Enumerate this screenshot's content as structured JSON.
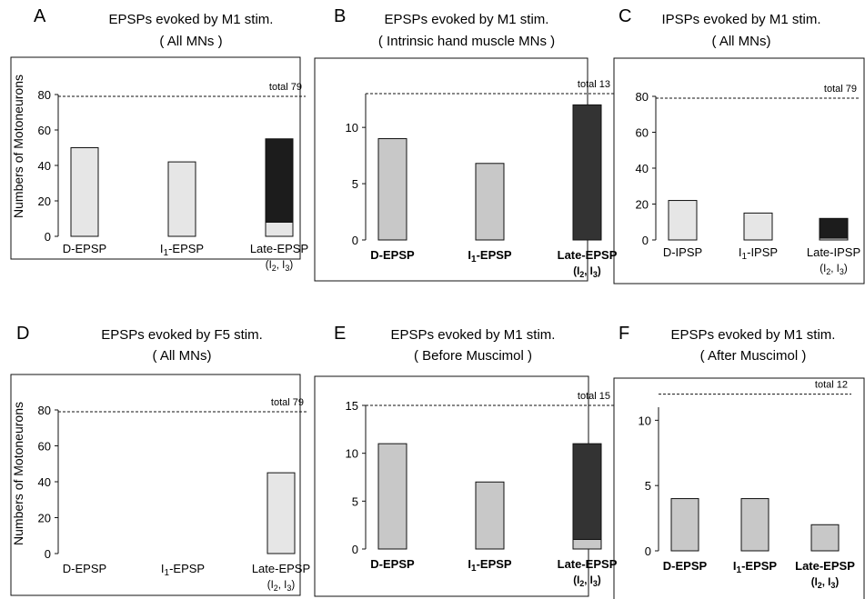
{
  "figure": {
    "ylabel": "Numbers of Motoneurons"
  },
  "chart_data": [
    {
      "letter": "A",
      "type": "bar",
      "title": "EPSPs evoked by M1 stim.",
      "subtitle": "( All MNs )",
      "total_label": "total 79",
      "total": 79,
      "ylim": [
        0,
        80
      ],
      "yticks": [
        0,
        20,
        40,
        60,
        80
      ],
      "categories": [
        {
          "lines": [
            [
              {
                "t": "D-EPSP"
              }
            ]
          ]
        },
        {
          "lines": [
            [
              {
                "t": "I"
              },
              {
                "t": "1",
                "sub": true
              },
              {
                "t": "-EPSP"
              }
            ]
          ]
        },
        {
          "lines": [
            [
              {
                "t": "Late-EPSP"
              }
            ],
            [
              {
                "t": "(I"
              },
              {
                "t": "2",
                "sub": true
              },
              {
                "t": ", I"
              },
              {
                "t": "3",
                "sub": true
              },
              {
                "t": ")"
              }
            ]
          ]
        }
      ],
      "series": [
        {
          "values": [
            50,
            42,
            8
          ],
          "color": "#e6e6e6"
        },
        {
          "values": [
            0,
            0,
            47
          ],
          "color": "#1c1c1c"
        }
      ]
    },
    {
      "letter": "B",
      "type": "bar",
      "title": "EPSPs evoked by M1 stim.",
      "subtitle": "( Intrinsic hand muscle MNs )",
      "total_label": "total 13",
      "total": 13,
      "ylim": [
        0,
        13
      ],
      "yticks": [
        0,
        5,
        10
      ],
      "categories": [
        {
          "lines": [
            [
              {
                "t": "D-EPSP"
              }
            ]
          ],
          "bold": true
        },
        {
          "lines": [
            [
              {
                "t": "I"
              },
              {
                "t": "1",
                "sub": true
              },
              {
                "t": "-EPSP"
              }
            ]
          ],
          "bold": true
        },
        {
          "lines": [
            [
              {
                "t": "Late-EPSP"
              }
            ],
            [
              {
                "t": "(I"
              },
              {
                "t": "2",
                "sub": true
              },
              {
                "t": ", I"
              },
              {
                "t": "3",
                "sub": true
              },
              {
                "t": ")"
              }
            ]
          ],
          "bold": true
        }
      ],
      "series": [
        {
          "values": [
            9,
            6.8,
            0
          ],
          "color": "#c8c8c8"
        },
        {
          "values": [
            0,
            0,
            12
          ],
          "color": "#333333"
        }
      ]
    },
    {
      "letter": "C",
      "type": "bar",
      "title": "IPSPs evoked by M1 stim.",
      "subtitle": "( All MNs)",
      "total_label": "total 79",
      "total": 79,
      "ylim": [
        0,
        80
      ],
      "yticks": [
        0,
        20,
        40,
        60,
        80
      ],
      "categories": [
        {
          "lines": [
            [
              {
                "t": "D-IPSP"
              }
            ]
          ]
        },
        {
          "lines": [
            [
              {
                "t": "I"
              },
              {
                "t": "1",
                "sub": true
              },
              {
                "t": "-IPSP"
              }
            ]
          ]
        },
        {
          "lines": [
            [
              {
                "t": "Late-IPSP"
              }
            ],
            [
              {
                "t": "(I"
              },
              {
                "t": "2",
                "sub": true
              },
              {
                "t": ", I"
              },
              {
                "t": "3",
                "sub": true
              },
              {
                "t": ")"
              }
            ]
          ]
        }
      ],
      "series": [
        {
          "values": [
            22,
            15,
            1
          ],
          "color": "#e6e6e6"
        },
        {
          "values": [
            0,
            0,
            11
          ],
          "color": "#1c1c1c"
        }
      ]
    },
    {
      "letter": "D",
      "type": "bar",
      "title": "EPSPs evoked by F5 stim.",
      "subtitle": "( All MNs)",
      "total_label": "total 79",
      "total": 79,
      "ylim": [
        0,
        80
      ],
      "yticks": [
        0,
        20,
        40,
        60,
        80
      ],
      "categories": [
        {
          "lines": [
            [
              {
                "t": "D-EPSP"
              }
            ]
          ]
        },
        {
          "lines": [
            [
              {
                "t": "I"
              },
              {
                "t": "1",
                "sub": true
              },
              {
                "t": "-EPSP"
              }
            ]
          ]
        },
        {
          "lines": [
            [
              {
                "t": "Late-EPSP"
              }
            ],
            [
              {
                "t": "(I"
              },
              {
                "t": "2",
                "sub": true
              },
              {
                "t": ", I"
              },
              {
                "t": "3",
                "sub": true
              },
              {
                "t": ")"
              }
            ]
          ]
        }
      ],
      "series": [
        {
          "values": [
            0,
            0,
            45
          ],
          "color": "#e6e6e6"
        }
      ]
    },
    {
      "letter": "E",
      "type": "bar",
      "title": "EPSPs evoked by M1 stim.",
      "subtitle": "( Before Muscimol )",
      "total_label": "total 15",
      "total": 15,
      "ylim": [
        0,
        15
      ],
      "yticks": [
        0,
        5,
        10,
        15
      ],
      "categories": [
        {
          "lines": [
            [
              {
                "t": "D-EPSP"
              }
            ]
          ],
          "bold": true
        },
        {
          "lines": [
            [
              {
                "t": "I"
              },
              {
                "t": "1",
                "sub": true
              },
              {
                "t": "-EPSP"
              }
            ]
          ],
          "bold": true
        },
        {
          "lines": [
            [
              {
                "t": "Late-EPSP"
              }
            ],
            [
              {
                "t": "(I"
              },
              {
                "t": "2",
                "sub": true
              },
              {
                "t": ", I"
              },
              {
                "t": "3",
                "sub": true
              },
              {
                "t": ")"
              }
            ]
          ],
          "bold": true
        }
      ],
      "series": [
        {
          "values": [
            11,
            7,
            1
          ],
          "color": "#c8c8c8"
        },
        {
          "values": [
            0,
            0,
            10
          ],
          "color": "#333333"
        }
      ]
    },
    {
      "letter": "F",
      "type": "bar",
      "title": "EPSPs evoked by M1 stim.",
      "subtitle": "( After Muscimol )",
      "total_label": "total 12",
      "total": 12,
      "ylim": [
        0,
        11
      ],
      "yticks": [
        0,
        5,
        10
      ],
      "categories": [
        {
          "lines": [
            [
              {
                "t": "D-EPSP"
              }
            ]
          ],
          "bold": true
        },
        {
          "lines": [
            [
              {
                "t": "I"
              },
              {
                "t": "1",
                "sub": true
              },
              {
                "t": "-EPSP"
              }
            ]
          ],
          "bold": true
        },
        {
          "lines": [
            [
              {
                "t": "Late-EPSP"
              }
            ],
            [
              {
                "t": "(I"
              },
              {
                "t": "2",
                "sub": true
              },
              {
                "t": ", I"
              },
              {
                "t": "3",
                "sub": true
              },
              {
                "t": ")"
              }
            ]
          ],
          "bold": true
        }
      ],
      "series": [
        {
          "values": [
            4,
            4,
            2
          ],
          "color": "#c8c8c8"
        }
      ]
    }
  ]
}
